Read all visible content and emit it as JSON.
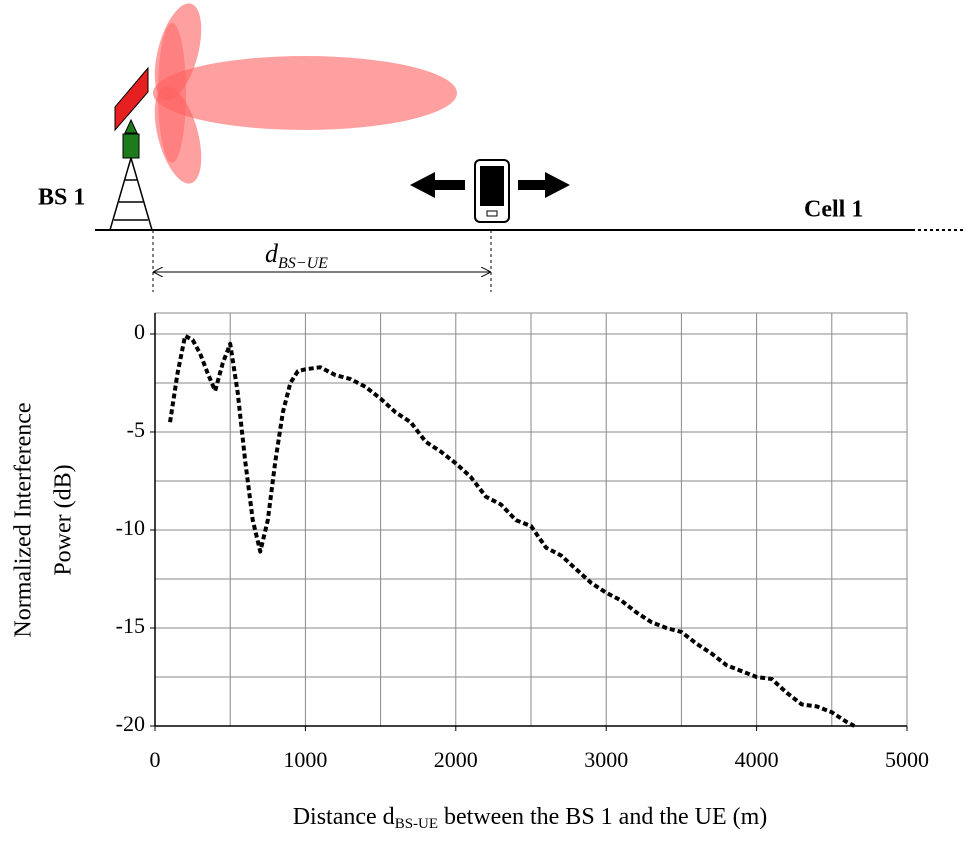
{
  "diagram": {
    "bs_label": "BS 1",
    "cell_label": "Cell 1",
    "distance_label": [
      "d",
      "BS−UE"
    ]
  },
  "chart_data": {
    "type": "line",
    "x_label": [
      "Distance d",
      "BS-UE",
      " between the BS 1 and the UE (m)"
    ],
    "y_label": [
      "Normalized Interference",
      "Power (dB)"
    ],
    "x": [
      100,
      150,
      200,
      250,
      300,
      350,
      400,
      450,
      500,
      550,
      600,
      650,
      700,
      750,
      800,
      850,
      900,
      950,
      1000,
      1100,
      1200,
      1300,
      1400,
      1500,
      1600,
      1700,
      1800,
      1900,
      2000,
      2100,
      2200,
      2300,
      2400,
      2500,
      2600,
      2700,
      2800,
      2900,
      3000,
      3100,
      3200,
      3300,
      3400,
      3500,
      3600,
      3700,
      3800,
      3900,
      4000,
      4100,
      4200,
      4300,
      4400,
      4500,
      4600,
      4650
    ],
    "values": [
      -4.5,
      -2,
      -0.1,
      -0.3,
      -1,
      -2,
      -2.9,
      -1.5,
      -0.5,
      -3,
      -6.5,
      -9.5,
      -11.1,
      -9.5,
      -6.5,
      -4,
      -2.5,
      -1.9,
      -1.8,
      -1.7,
      -2.1,
      -2.3,
      -2.7,
      -3.3,
      -4,
      -4.5,
      -5.5,
      -6,
      -6.6,
      -7.3,
      -8.3,
      -8.7,
      -9.5,
      -9.8,
      -10.9,
      -11.3,
      -12,
      -12.7,
      -13.2,
      -13.6,
      -14.2,
      -14.7,
      -15,
      -15.2,
      -15.8,
      -16.3,
      -16.9,
      -17.2,
      -17.5,
      -17.6,
      -18.3,
      -18.9,
      -19,
      -19.3,
      -19.8,
      -20
    ],
    "color": "#000000",
    "xlim": [
      0,
      5000
    ],
    "ylim": [
      -20,
      1.07
    ],
    "xticks": [
      0,
      1000,
      2000,
      3000,
      4000,
      5000
    ],
    "yticks": [
      -20,
      -15,
      -10,
      -5,
      0
    ],
    "xgrid": [
      500,
      1000,
      1500,
      2000,
      2500,
      3000,
      3500,
      4000,
      4500,
      5000
    ],
    "ygrid": [
      -17.5,
      -15,
      -12.5,
      -10,
      -7.5,
      -5,
      -2.5,
      0
    ],
    "grid": true
  }
}
